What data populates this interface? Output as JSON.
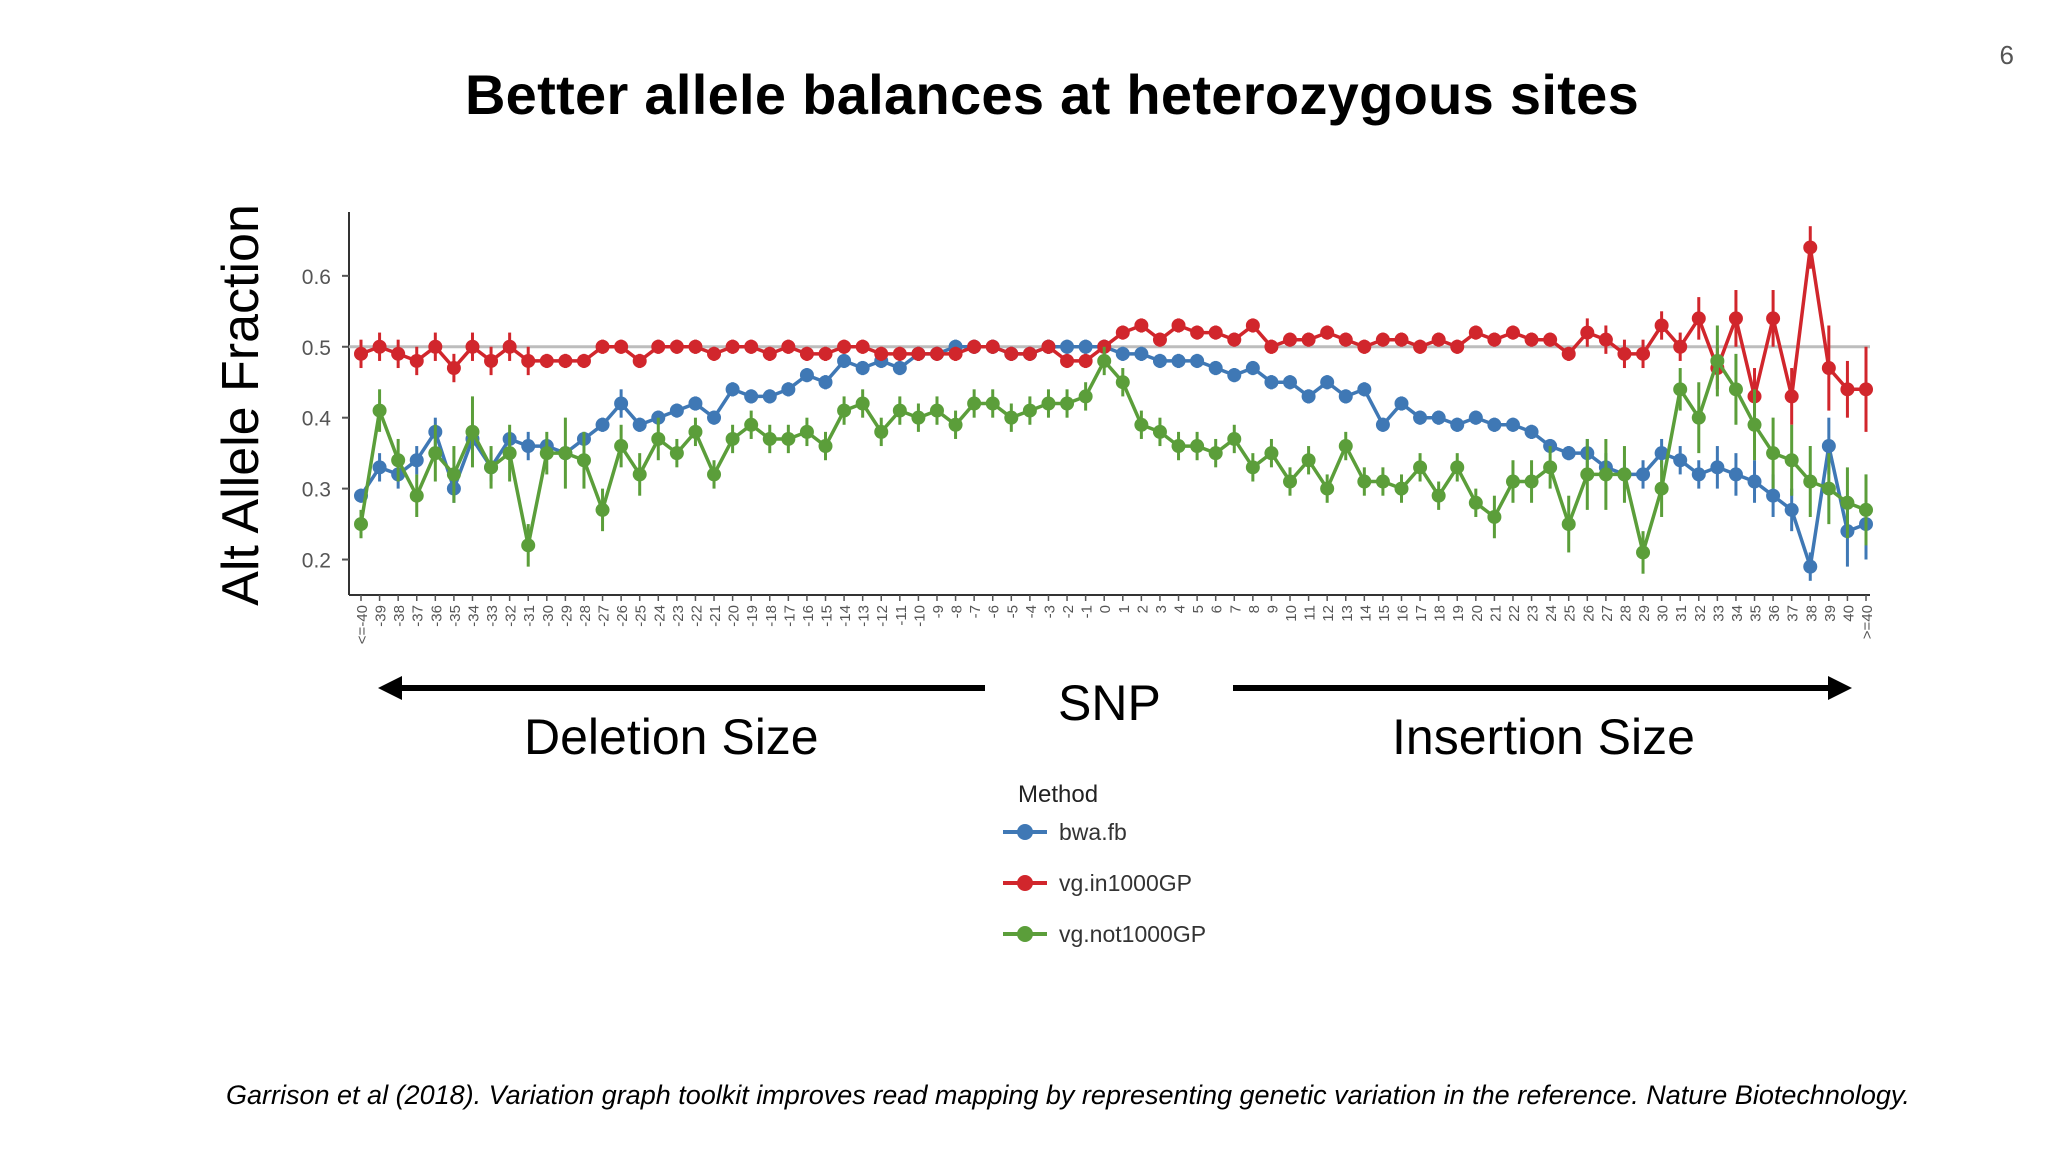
{
  "slide": {
    "page_number": "6",
    "title": "Better allele balances at heterozygous sites",
    "deletion_label": "Deletion Size",
    "snp_label": "SNP",
    "insertion_label": "Insertion Size",
    "citation": "Garrison et al (2018). Variation graph toolkit improves read mapping by representing genetic variation in the reference. Nature Biotechnology."
  },
  "chart_data": {
    "type": "line",
    "title": "",
    "xlabel": "",
    "ylabel": "Alt Allele Fraction",
    "ylim": [
      0.15,
      0.69
    ],
    "yticks": [
      0.2,
      0.3,
      0.4,
      0.5,
      0.6
    ],
    "reference_line": 0.5,
    "grid": false,
    "legend": {
      "title": "Method",
      "position": "bottom"
    },
    "categories": [
      "<=-40",
      "-39",
      "-38",
      "-37",
      "-36",
      "-35",
      "-34",
      "-33",
      "-32",
      "-31",
      "-30",
      "-29",
      "-28",
      "-27",
      "-26",
      "-25",
      "-24",
      "-23",
      "-22",
      "-21",
      "-20",
      "-19",
      "-18",
      "-17",
      "-16",
      "-15",
      "-14",
      "-13",
      "-12",
      "-11",
      "-10",
      "-9",
      "-8",
      "-7",
      "-6",
      "-5",
      "-4",
      "-3",
      "-2",
      "-1",
      "0",
      "1",
      "2",
      "3",
      "4",
      "5",
      "6",
      "7",
      "8",
      "9",
      "10",
      "11",
      "12",
      "13",
      "14",
      "15",
      "16",
      "17",
      "18",
      "19",
      "20",
      "21",
      "22",
      "23",
      "24",
      "25",
      "26",
      "27",
      "28",
      "29",
      "30",
      "31",
      "32",
      "33",
      "34",
      "35",
      "36",
      "37",
      "38",
      "39",
      "40",
      ">=40"
    ],
    "series": [
      {
        "name": "bwa.fb",
        "color": "#3f78b5",
        "values": [
          0.29,
          0.33,
          0.32,
          0.34,
          0.38,
          0.3,
          0.37,
          0.33,
          0.37,
          0.36,
          0.36,
          0.35,
          0.37,
          0.39,
          0.42,
          0.39,
          0.4,
          0.41,
          0.42,
          0.4,
          0.44,
          0.43,
          0.43,
          0.44,
          0.46,
          0.45,
          0.48,
          0.47,
          0.48,
          0.47,
          0.49,
          0.49,
          0.5,
          0.5,
          0.5,
          0.49,
          0.49,
          0.5,
          0.5,
          0.5,
          0.5,
          0.49,
          0.49,
          0.48,
          0.48,
          0.48,
          0.47,
          0.46,
          0.47,
          0.45,
          0.45,
          0.43,
          0.45,
          0.43,
          0.44,
          0.39,
          0.42,
          0.4,
          0.4,
          0.39,
          0.4,
          0.39,
          0.39,
          0.38,
          0.36,
          0.35,
          0.35,
          0.33,
          0.32,
          0.32,
          0.35,
          0.34,
          0.32,
          0.33,
          0.32,
          0.31,
          0.29,
          0.27,
          0.19,
          0.36,
          0.24,
          0.25
        ],
        "errors": [
          0.01,
          0.02,
          0.02,
          0.02,
          0.02,
          0.02,
          0.02,
          0.02,
          0.01,
          0.02,
          0.01,
          0.01,
          0.01,
          0.01,
          0.02,
          0.01,
          0.01,
          0.01,
          0.01,
          0.01,
          0.01,
          0.01,
          0.01,
          0.01,
          0.01,
          0.01,
          0.01,
          0.01,
          0.01,
          0.01,
          0.01,
          0.01,
          0.01,
          0.01,
          0.01,
          0.01,
          0.01,
          0.01,
          0.01,
          0.01,
          0.01,
          0.01,
          0.01,
          0.01,
          0.01,
          0.01,
          0.01,
          0.01,
          0.01,
          0.01,
          0.01,
          0.01,
          0.01,
          0.01,
          0.01,
          0.01,
          0.01,
          0.01,
          0.01,
          0.01,
          0.01,
          0.01,
          0.01,
          0.01,
          0.01,
          0.01,
          0.02,
          0.02,
          0.02,
          0.02,
          0.02,
          0.02,
          0.02,
          0.03,
          0.03,
          0.03,
          0.03,
          0.03,
          0.02,
          0.04,
          0.05,
          0.05
        ]
      },
      {
        "name": "vg.in1000GP",
        "color": "#d1262c",
        "values": [
          0.49,
          0.5,
          0.49,
          0.48,
          0.5,
          0.47,
          0.5,
          0.48,
          0.5,
          0.48,
          0.48,
          0.48,
          0.48,
          0.5,
          0.5,
          0.48,
          0.5,
          0.5,
          0.5,
          0.49,
          0.5,
          0.5,
          0.49,
          0.5,
          0.49,
          0.49,
          0.5,
          0.5,
          0.49,
          0.49,
          0.49,
          0.49,
          0.49,
          0.5,
          0.5,
          0.49,
          0.49,
          0.5,
          0.48,
          0.48,
          0.5,
          0.52,
          0.53,
          0.51,
          0.53,
          0.52,
          0.52,
          0.51,
          0.53,
          0.5,
          0.51,
          0.51,
          0.52,
          0.51,
          0.5,
          0.51,
          0.51,
          0.5,
          0.51,
          0.5,
          0.52,
          0.51,
          0.52,
          0.51,
          0.51,
          0.49,
          0.52,
          0.51,
          0.49,
          0.49,
          0.53,
          0.5,
          0.54,
          0.47,
          0.54,
          0.43,
          0.54,
          0.43,
          0.64,
          0.47,
          0.44,
          0.44
        ],
        "errors": [
          0.02,
          0.02,
          0.02,
          0.02,
          0.02,
          0.02,
          0.02,
          0.02,
          0.02,
          0.02,
          0.01,
          0.01,
          0.01,
          0.01,
          0.01,
          0.01,
          0.01,
          0.01,
          0.01,
          0.01,
          0.01,
          0.01,
          0.01,
          0.01,
          0.01,
          0.01,
          0.01,
          0.01,
          0.01,
          0.01,
          0.01,
          0.01,
          0.01,
          0.01,
          0.01,
          0.01,
          0.01,
          0.01,
          0.01,
          0.01,
          0.01,
          0.01,
          0.01,
          0.01,
          0.01,
          0.01,
          0.01,
          0.01,
          0.01,
          0.01,
          0.01,
          0.01,
          0.01,
          0.01,
          0.01,
          0.01,
          0.01,
          0.01,
          0.01,
          0.01,
          0.01,
          0.01,
          0.01,
          0.01,
          0.01,
          0.01,
          0.02,
          0.02,
          0.02,
          0.02,
          0.02,
          0.02,
          0.03,
          0.03,
          0.04,
          0.04,
          0.04,
          0.04,
          0.03,
          0.06,
          0.04,
          0.06
        ]
      },
      {
        "name": "vg.not1000GP",
        "color": "#5b9e3a",
        "values": [
          0.25,
          0.41,
          0.34,
          0.29,
          0.35,
          0.32,
          0.38,
          0.33,
          0.35,
          0.22,
          0.35,
          0.35,
          0.34,
          0.27,
          0.36,
          0.32,
          0.37,
          0.35,
          0.38,
          0.32,
          0.37,
          0.39,
          0.37,
          0.37,
          0.38,
          0.36,
          0.41,
          0.42,
          0.38,
          0.41,
          0.4,
          0.41,
          0.39,
          0.42,
          0.42,
          0.4,
          0.41,
          0.42,
          0.42,
          0.43,
          0.48,
          0.45,
          0.39,
          0.38,
          0.36,
          0.36,
          0.35,
          0.37,
          0.33,
          0.35,
          0.31,
          0.34,
          0.3,
          0.36,
          0.31,
          0.31,
          0.3,
          0.33,
          0.29,
          0.33,
          0.28,
          0.26,
          0.31,
          0.31,
          0.33,
          0.25,
          0.32,
          0.32,
          0.32,
          0.21,
          0.3,
          0.44,
          0.4,
          0.48,
          0.44,
          0.39,
          0.35,
          0.34,
          0.31,
          0.3,
          0.28,
          0.27
        ],
        "errors": [
          0.02,
          0.03,
          0.03,
          0.03,
          0.04,
          0.04,
          0.05,
          0.03,
          0.04,
          0.03,
          0.03,
          0.05,
          0.04,
          0.03,
          0.03,
          0.03,
          0.03,
          0.02,
          0.02,
          0.02,
          0.02,
          0.02,
          0.02,
          0.02,
          0.02,
          0.02,
          0.02,
          0.02,
          0.02,
          0.02,
          0.02,
          0.02,
          0.02,
          0.02,
          0.02,
          0.02,
          0.02,
          0.02,
          0.02,
          0.02,
          0.02,
          0.02,
          0.02,
          0.02,
          0.02,
          0.02,
          0.02,
          0.02,
          0.02,
          0.02,
          0.02,
          0.02,
          0.02,
          0.02,
          0.02,
          0.02,
          0.02,
          0.02,
          0.02,
          0.02,
          0.02,
          0.03,
          0.03,
          0.03,
          0.03,
          0.04,
          0.05,
          0.05,
          0.04,
          0.03,
          0.04,
          0.03,
          0.05,
          0.05,
          0.05,
          0.05,
          0.05,
          0.05,
          0.05,
          0.05,
          0.05,
          0.05
        ]
      }
    ]
  }
}
